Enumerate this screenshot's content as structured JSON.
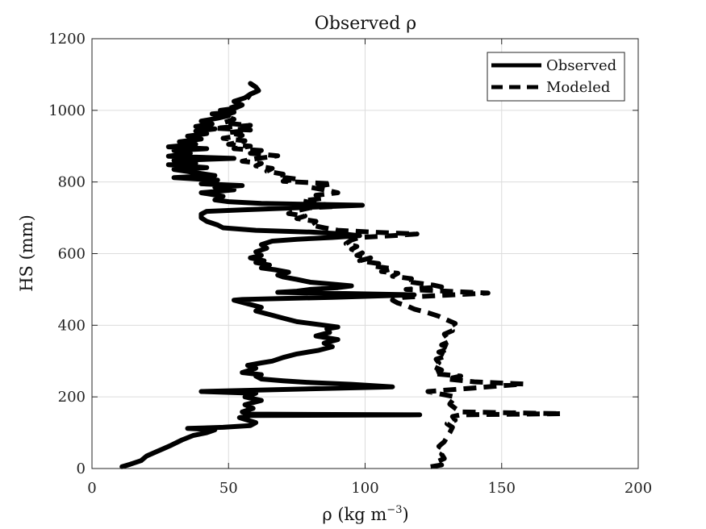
{
  "chart_data": {
    "type": "line",
    "title": "Observed ρ",
    "xlabel": "ρ (kg m",
    "xlabel_sup": "−3",
    "xlabel_suffix": ")",
    "ylabel": "HS (mm)",
    "xlim": [
      0,
      200
    ],
    "ylim": [
      0,
      1200
    ],
    "xticks": [
      0,
      50,
      100,
      150,
      200
    ],
    "yticks": [
      0,
      200,
      400,
      600,
      800,
      1000,
      1200
    ],
    "grid": true,
    "legend_position": "top-right",
    "series": [
      {
        "name": "Observed",
        "style": "solid",
        "points": [
          [
            11,
            5
          ],
          [
            14,
            12
          ],
          [
            18,
            22
          ],
          [
            20,
            35
          ],
          [
            23,
            45
          ],
          [
            26,
            55
          ],
          [
            29,
            65
          ],
          [
            33,
            80
          ],
          [
            37,
            92
          ],
          [
            42,
            100
          ],
          [
            45,
            108
          ],
          [
            35,
            112
          ],
          [
            48,
            115
          ],
          [
            58,
            120
          ],
          [
            60,
            128
          ],
          [
            57,
            135
          ],
          [
            54,
            142
          ],
          [
            58,
            148
          ],
          [
            120,
            150
          ],
          [
            57,
            152
          ],
          [
            55,
            158
          ],
          [
            59,
            168
          ],
          [
            56,
            178
          ],
          [
            62,
            190
          ],
          [
            56,
            200
          ],
          [
            60,
            210
          ],
          [
            40,
            215
          ],
          [
            110,
            228
          ],
          [
            95,
            235
          ],
          [
            80,
            240
          ],
          [
            70,
            245
          ],
          [
            62,
            250
          ],
          [
            60,
            258
          ],
          [
            62,
            262
          ],
          [
            55,
            268
          ],
          [
            58,
            275
          ],
          [
            60,
            280
          ],
          [
            57,
            288
          ],
          [
            62,
            295
          ],
          [
            66,
            300
          ],
          [
            70,
            310
          ],
          [
            75,
            320
          ],
          [
            83,
            330
          ],
          [
            88,
            340
          ],
          [
            85,
            350
          ],
          [
            90,
            360
          ],
          [
            82,
            370
          ],
          [
            87,
            380
          ],
          [
            86,
            390
          ],
          [
            90,
            395
          ],
          [
            85,
            400
          ],
          [
            80,
            405
          ],
          [
            75,
            410
          ],
          [
            70,
            420
          ],
          [
            65,
            430
          ],
          [
            60,
            440
          ],
          [
            62,
            450
          ],
          [
            57,
            460
          ],
          [
            52,
            470
          ],
          [
            55,
            472
          ],
          [
            88,
            478
          ],
          [
            118,
            485
          ],
          [
            68,
            492
          ],
          [
            75,
            495
          ],
          [
            80,
            500
          ],
          [
            90,
            505
          ],
          [
            95,
            510
          ],
          [
            88,
            515
          ],
          [
            80,
            520
          ],
          [
            75,
            528
          ],
          [
            70,
            535
          ],
          [
            68,
            540
          ],
          [
            72,
            548
          ],
          [
            67,
            555
          ],
          [
            62,
            560
          ],
          [
            65,
            568
          ],
          [
            60,
            575
          ],
          [
            63,
            580
          ],
          [
            58,
            588
          ],
          [
            62,
            595
          ],
          [
            60,
            605
          ],
          [
            64,
            615
          ],
          [
            62,
            625
          ],
          [
            66,
            635
          ],
          [
            75,
            640
          ],
          [
            88,
            645
          ],
          [
            98,
            650
          ],
          [
            92,
            655
          ],
          [
            80,
            660
          ],
          [
            60,
            665
          ],
          [
            48,
            672
          ],
          [
            46,
            680
          ],
          [
            42,
            690
          ],
          [
            40,
            700
          ],
          [
            40,
            710
          ],
          [
            42,
            718
          ],
          [
            55,
            722
          ],
          [
            99,
            735
          ],
          [
            62,
            740
          ],
          [
            50,
            745
          ],
          [
            45,
            750
          ],
          [
            48,
            760
          ],
          [
            40,
            770
          ],
          [
            52,
            778
          ],
          [
            45,
            785
          ],
          [
            55,
            790
          ],
          [
            40,
            795
          ],
          [
            46,
            805
          ],
          [
            30,
            812
          ],
          [
            45,
            818
          ],
          [
            36,
            828
          ],
          [
            30,
            835
          ],
          [
            42,
            840
          ],
          [
            28,
            848
          ],
          [
            38,
            852
          ],
          [
            30,
            860
          ],
          [
            52,
            866
          ],
          [
            28,
            872
          ],
          [
            36,
            880
          ],
          [
            30,
            888
          ],
          [
            42,
            893
          ],
          [
            28,
            898
          ],
          [
            38,
            905
          ],
          [
            32,
            912
          ],
          [
            40,
            920
          ],
          [
            35,
            928
          ],
          [
            42,
            935
          ],
          [
            38,
            942
          ],
          [
            45,
            948
          ],
          [
            38,
            955
          ],
          [
            44,
            962
          ],
          [
            40,
            970
          ],
          [
            46,
            978
          ],
          [
            50,
            985
          ],
          [
            44,
            990
          ],
          [
            52,
            995
          ],
          [
            47,
            1000
          ],
          [
            52,
            1005
          ],
          [
            55,
            1015
          ],
          [
            52,
            1025
          ],
          [
            56,
            1035
          ],
          [
            58,
            1045
          ],
          [
            61,
            1055
          ],
          [
            60,
            1065
          ],
          [
            58,
            1075
          ]
        ]
      },
      {
        "name": "Modeled",
        "style": "dashed",
        "points": [
          [
            124,
            5
          ],
          [
            128,
            10
          ],
          [
            126,
            18
          ],
          [
            129,
            28
          ],
          [
            128,
            40
          ],
          [
            129,
            52
          ],
          [
            127,
            62
          ],
          [
            129,
            75
          ],
          [
            130,
            88
          ],
          [
            131,
            100
          ],
          [
            132,
            115
          ],
          [
            130,
            125
          ],
          [
            133,
            135
          ],
          [
            132,
            145
          ],
          [
            135,
            150
          ],
          [
            172,
            153
          ],
          [
            135,
            158
          ],
          [
            133,
            168
          ],
          [
            131,
            180
          ],
          [
            132,
            190
          ],
          [
            133,
            200
          ],
          [
            123,
            215
          ],
          [
            140,
            225
          ],
          [
            158,
            236
          ],
          [
            140,
            242
          ],
          [
            130,
            250
          ],
          [
            135,
            258
          ],
          [
            125,
            265
          ],
          [
            128,
            275
          ],
          [
            125,
            285
          ],
          [
            127,
            295
          ],
          [
            126,
            305
          ],
          [
            130,
            315
          ],
          [
            127,
            325
          ],
          [
            131,
            335
          ],
          [
            128,
            345
          ],
          [
            131,
            355
          ],
          [
            130,
            365
          ],
          [
            129,
            375
          ],
          [
            132,
            385
          ],
          [
            131,
            395
          ],
          [
            133,
            405
          ],
          [
            130,
            415
          ],
          [
            127,
            425
          ],
          [
            123,
            435
          ],
          [
            118,
            445
          ],
          [
            115,
            455
          ],
          [
            112,
            462
          ],
          [
            110,
            470
          ],
          [
            114,
            478
          ],
          [
            130,
            484
          ],
          [
            145,
            490
          ],
          [
            130,
            495
          ],
          [
            115,
            500
          ],
          [
            128,
            507
          ],
          [
            125,
            512
          ],
          [
            119,
            518
          ],
          [
            115,
            523
          ],
          [
            117,
            530
          ],
          [
            110,
            537
          ],
          [
            112,
            545
          ],
          [
            106,
            550
          ],
          [
            110,
            558
          ],
          [
            103,
            565
          ],
          [
            105,
            572
          ],
          [
            98,
            580
          ],
          [
            102,
            588
          ],
          [
            97,
            595
          ],
          [
            99,
            602
          ],
          [
            95,
            612
          ],
          [
            97,
            620
          ],
          [
            93,
            628
          ],
          [
            95,
            638
          ],
          [
            98,
            645
          ],
          [
            110,
            650
          ],
          [
            119,
            655
          ],
          [
            102,
            660
          ],
          [
            90,
            665
          ],
          [
            85,
            672
          ],
          [
            80,
            680
          ],
          [
            82,
            690
          ],
          [
            75,
            698
          ],
          [
            78,
            705
          ],
          [
            72,
            712
          ],
          [
            75,
            720
          ],
          [
            80,
            728
          ],
          [
            90,
            732
          ],
          [
            82,
            740
          ],
          [
            77,
            747
          ],
          [
            85,
            755
          ],
          [
            82,
            763
          ],
          [
            90,
            770
          ],
          [
            85,
            778
          ],
          [
            80,
            785
          ],
          [
            88,
            795
          ],
          [
            70,
            802
          ],
          [
            75,
            808
          ],
          [
            68,
            815
          ],
          [
            70,
            822
          ],
          [
            64,
            830
          ],
          [
            66,
            838
          ],
          [
            60,
            845
          ],
          [
            62,
            852
          ],
          [
            55,
            858
          ],
          [
            60,
            865
          ],
          [
            68,
            873
          ],
          [
            58,
            880
          ],
          [
            62,
            888
          ],
          [
            52,
            893
          ],
          [
            58,
            900
          ],
          [
            50,
            905
          ],
          [
            56,
            915
          ],
          [
            48,
            922
          ],
          [
            55,
            930
          ],
          [
            50,
            938
          ],
          [
            58,
            945
          ],
          [
            45,
            950
          ],
          [
            58,
            958
          ],
          [
            48,
            965
          ],
          [
            52,
            975
          ],
          [
            48,
            985
          ],
          [
            52,
            995
          ],
          [
            50,
            1005
          ],
          [
            54,
            1015
          ],
          [
            55,
            1025
          ],
          [
            57,
            1035
          ],
          [
            58,
            1045
          ],
          [
            61,
            1055
          ],
          [
            60,
            1065
          ],
          [
            58,
            1075
          ]
        ]
      }
    ]
  }
}
